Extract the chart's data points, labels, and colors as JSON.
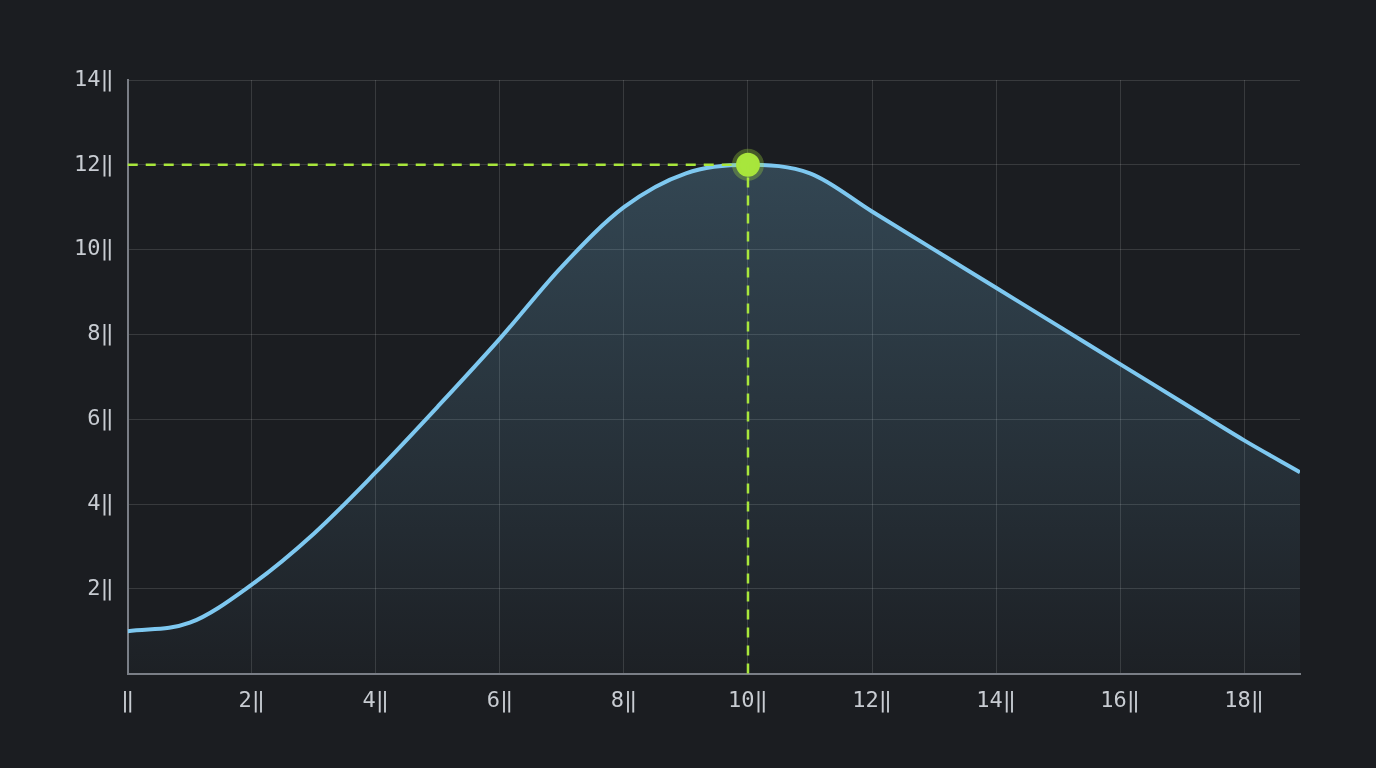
{
  "chart_data": {
    "type": "area",
    "x": [
      0,
      1,
      2,
      3,
      4,
      5,
      6,
      7,
      8,
      9,
      10,
      11,
      12,
      13,
      14,
      15,
      16,
      17,
      18,
      18.9
    ],
    "series": [
      {
        "color": "#7ec8f0",
        "marker": "none",
        "values": [
          1,
          1.2,
          2.1,
          3.3,
          4.75,
          6.3,
          7.9,
          9.6,
          11.0,
          11.8,
          12,
          11.8,
          10.9,
          10.0,
          9.1,
          8.2,
          7.3,
          6.4,
          5.5,
          4.75
        ]
      },
      {
        "type": "scatter",
        "marker": "circle",
        "color": "#a8e63c",
        "x": [
          10
        ],
        "values": [
          12
        ]
      }
    ],
    "xlim": [
      0,
      18.9
    ],
    "ylim": [
      0,
      14
    ],
    "xticks": [
      {
        "value": 0,
        "label": "‖"
      },
      {
        "value": 2,
        "label": "2‖"
      },
      {
        "value": 4,
        "label": "4‖"
      },
      {
        "value": 6,
        "label": "6‖"
      },
      {
        "value": 8,
        "label": "8‖"
      },
      {
        "value": 10,
        "label": "10‖"
      },
      {
        "value": 12,
        "label": "12‖"
      },
      {
        "value": 14,
        "label": "14‖"
      },
      {
        "value": 16,
        "label": "16‖"
      },
      {
        "value": 18,
        "label": "18‖"
      }
    ],
    "yticks": [
      {
        "value": 2,
        "label": "2‖"
      },
      {
        "value": 4,
        "label": "4‖"
      },
      {
        "value": 6,
        "label": "6‖"
      },
      {
        "value": 8,
        "label": "8‖"
      },
      {
        "value": 10,
        "label": "10‖"
      },
      {
        "value": 12,
        "label": "12‖"
      },
      {
        "value": 14,
        "label": "14‖"
      }
    ],
    "ref_lines": [
      {
        "axis": "x",
        "value": 10,
        "color": "#a8e63c",
        "line_style": "dashed"
      },
      {
        "axis": "y",
        "value": 12,
        "color": "#a8e63c",
        "line_style": "dashed"
      }
    ],
    "grid": true,
    "legend": false,
    "line_style": "solid"
  }
}
